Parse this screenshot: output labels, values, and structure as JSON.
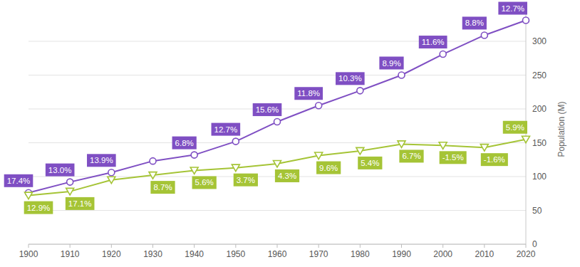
{
  "chart_data": {
    "type": "line",
    "y_label": "Population (M)",
    "x": [
      1900,
      1910,
      1920,
      1930,
      1940,
      1950,
      1960,
      1970,
      1980,
      1990,
      2000,
      2010,
      2020
    ],
    "xlim": [
      1900,
      2020
    ],
    "xticks": [
      1900,
      1910,
      1920,
      1930,
      1940,
      1950,
      1960,
      1970,
      1980,
      1990,
      2000,
      2010,
      2020
    ],
    "ylim": [
      0,
      340
    ],
    "yticks": [
      0,
      50,
      100,
      150,
      200,
      250,
      300
    ],
    "grid": true,
    "series": [
      {
        "color": "#7f4fc3",
        "marker": "circle",
        "values": [
          76,
          92,
          106,
          123,
          132,
          152,
          181,
          205,
          227,
          250,
          281,
          309,
          331
        ],
        "labels": [
          "17.4%",
          "13.0%",
          "13.9%",
          null,
          "6.8%",
          "12.7%",
          "15.6%",
          "11.8%",
          "10.3%",
          "8.9%",
          "11.6%",
          "8.8%",
          "12.7%"
        ]
      },
      {
        "color": "#a5c436",
        "marker": "triangle-down",
        "values": [
          72,
          78,
          95,
          102,
          109,
          113,
          119,
          131,
          138,
          148,
          146,
          143,
          155
        ],
        "labels": [
          "12.9%",
          "17.1%",
          null,
          "8.7%",
          "5.6%",
          "3.7%",
          "4.3%",
          "9.6%",
          "5.4%",
          "6.7%",
          "-1.5%",
          "-1.6%",
          "5.9%"
        ]
      }
    ]
  }
}
